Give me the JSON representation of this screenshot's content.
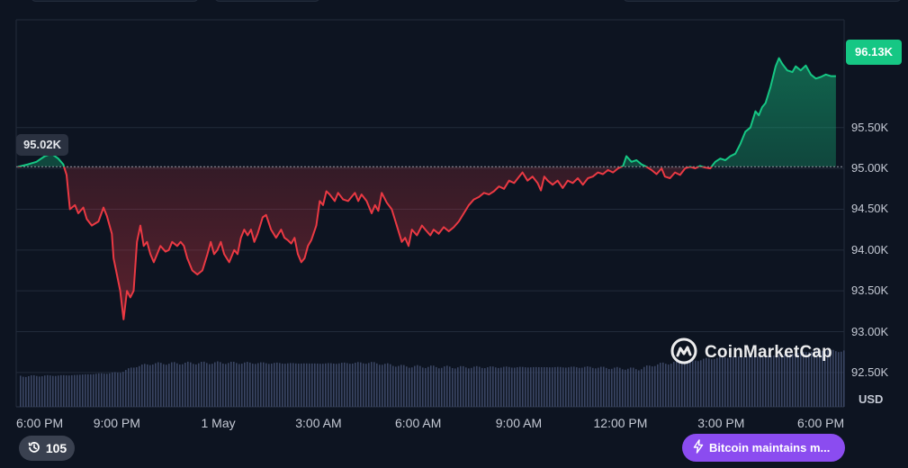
{
  "chart_data": {
    "type": "line",
    "series_name": "",
    "currency": "USD",
    "reference_label": "95.02K",
    "reference_value": 95020,
    "last_price_label": "96.13K",
    "ylim": [
      92080,
      96820
    ],
    "y_ticks": [
      {
        "value": 92500,
        "label": "92.50K"
      },
      {
        "value": 93000,
        "label": "93.00K"
      },
      {
        "value": 93500,
        "label": "93.50K"
      },
      {
        "value": 94000,
        "label": "94.00K"
      },
      {
        "value": 94500,
        "label": "94.50K"
      },
      {
        "value": 95000,
        "label": "95.00K"
      },
      {
        "value": 95500,
        "label": "95.50K"
      }
    ],
    "x_ticks": [
      "6:00 PM",
      "9:00 PM",
      "1 May",
      "3:00 AM",
      "6:00 AM",
      "9:00 AM",
      "12:00 PM",
      "3:00 PM",
      "6:00 PM"
    ],
    "x_hours": [
      0,
      3,
      6,
      9,
      12,
      15,
      18,
      21,
      24
    ],
    "x_range_hours": [
      0,
      24.7
    ],
    "price_points": [
      [
        0.0,
        95020
      ],
      [
        0.3,
        95050
      ],
      [
        0.55,
        95080
      ],
      [
        0.8,
        95150
      ],
      [
        1.0,
        95180
      ],
      [
        1.2,
        95120
      ],
      [
        1.35,
        95050
      ],
      [
        1.45,
        94920
      ],
      [
        1.55,
        94500
      ],
      [
        1.7,
        94550
      ],
      [
        1.8,
        94450
      ],
      [
        1.95,
        94520
      ],
      [
        2.05,
        94380
      ],
      [
        2.2,
        94300
      ],
      [
        2.4,
        94350
      ],
      [
        2.55,
        94520
      ],
      [
        2.65,
        94420
      ],
      [
        2.8,
        94200
      ],
      [
        2.85,
        93900
      ],
      [
        2.95,
        93700
      ],
      [
        3.05,
        93500
      ],
      [
        3.15,
        93150
      ],
      [
        3.25,
        93500
      ],
      [
        3.35,
        93420
      ],
      [
        3.45,
        93500
      ],
      [
        3.55,
        94100
      ],
      [
        3.65,
        94300
      ],
      [
        3.75,
        94050
      ],
      [
        3.85,
        94100
      ],
      [
        3.95,
        93950
      ],
      [
        4.05,
        93850
      ],
      [
        4.15,
        93950
      ],
      [
        4.25,
        94050
      ],
      [
        4.4,
        93980
      ],
      [
        4.5,
        94000
      ],
      [
        4.6,
        94100
      ],
      [
        4.75,
        94050
      ],
      [
        4.85,
        94100
      ],
      [
        4.95,
        94050
      ],
      [
        5.05,
        93900
      ],
      [
        5.2,
        93750
      ],
      [
        5.35,
        93700
      ],
      [
        5.5,
        93750
      ],
      [
        5.65,
        93950
      ],
      [
        5.75,
        94100
      ],
      [
        5.85,
        93950
      ],
      [
        5.95,
        94000
      ],
      [
        6.05,
        94100
      ],
      [
        6.15,
        93950
      ],
      [
        6.3,
        93850
      ],
      [
        6.45,
        94000
      ],
      [
        6.55,
        93950
      ],
      [
        6.65,
        94150
      ],
      [
        6.75,
        94250
      ],
      [
        6.85,
        94180
      ],
      [
        6.95,
        94250
      ],
      [
        7.05,
        94100
      ],
      [
        7.15,
        94200
      ],
      [
        7.3,
        94400
      ],
      [
        7.4,
        94430
      ],
      [
        7.55,
        94250
      ],
      [
        7.7,
        94150
      ],
      [
        7.85,
        94250
      ],
      [
        7.95,
        94150
      ],
      [
        8.05,
        94120
      ],
      [
        8.15,
        94080
      ],
      [
        8.25,
        94150
      ],
      [
        8.35,
        93950
      ],
      [
        8.45,
        93850
      ],
      [
        8.55,
        93900
      ],
      [
        8.65,
        94050
      ],
      [
        8.75,
        94120
      ],
      [
        8.9,
        94300
      ],
      [
        9.0,
        94600
      ],
      [
        9.1,
        94550
      ],
      [
        9.2,
        94720
      ],
      [
        9.3,
        94680
      ],
      [
        9.45,
        94600
      ],
      [
        9.55,
        94700
      ],
      [
        9.7,
        94620
      ],
      [
        9.85,
        94600
      ],
      [
        9.95,
        94650
      ],
      [
        10.05,
        94700
      ],
      [
        10.15,
        94600
      ],
      [
        10.25,
        94680
      ],
      [
        10.4,
        94600
      ],
      [
        10.55,
        94450
      ],
      [
        10.65,
        94550
      ],
      [
        10.75,
        94480
      ],
      [
        10.85,
        94700
      ],
      [
        11.0,
        94580
      ],
      [
        11.15,
        94500
      ],
      [
        11.3,
        94300
      ],
      [
        11.45,
        94100
      ],
      [
        11.55,
        94150
      ],
      [
        11.65,
        94050
      ],
      [
        11.75,
        94250
      ],
      [
        11.9,
        94180
      ],
      [
        12.05,
        94300
      ],
      [
        12.15,
        94250
      ],
      [
        12.3,
        94180
      ],
      [
        12.4,
        94250
      ],
      [
        12.55,
        94200
      ],
      [
        12.7,
        94280
      ],
      [
        12.85,
        94230
      ],
      [
        13.0,
        94280
      ],
      [
        13.15,
        94350
      ],
      [
        13.3,
        94450
      ],
      [
        13.45,
        94550
      ],
      [
        13.6,
        94620
      ],
      [
        13.75,
        94650
      ],
      [
        13.9,
        94700
      ],
      [
        14.05,
        94680
      ],
      [
        14.2,
        94720
      ],
      [
        14.35,
        94780
      ],
      [
        14.5,
        94750
      ],
      [
        14.65,
        94850
      ],
      [
        14.8,
        94820
      ],
      [
        14.95,
        94900
      ],
      [
        15.05,
        94950
      ],
      [
        15.2,
        94850
      ],
      [
        15.35,
        94900
      ],
      [
        15.5,
        94820
      ],
      [
        15.6,
        94730
      ],
      [
        15.7,
        94900
      ],
      [
        15.8,
        94850
      ],
      [
        15.95,
        94800
      ],
      [
        16.1,
        94850
      ],
      [
        16.25,
        94760
      ],
      [
        16.4,
        94850
      ],
      [
        16.55,
        94820
      ],
      [
        16.7,
        94880
      ],
      [
        16.85,
        94800
      ],
      [
        17.0,
        94880
      ],
      [
        17.15,
        94900
      ],
      [
        17.3,
        94950
      ],
      [
        17.45,
        94930
      ],
      [
        17.6,
        94980
      ],
      [
        17.75,
        94950
      ],
      [
        17.9,
        95000
      ],
      [
        18.05,
        95030
      ],
      [
        18.15,
        95150
      ],
      [
        18.3,
        95080
      ],
      [
        18.45,
        95100
      ],
      [
        18.6,
        95050
      ],
      [
        18.75,
        95020
      ],
      [
        18.9,
        94980
      ],
      [
        19.05,
        94930
      ],
      [
        19.2,
        95000
      ],
      [
        19.3,
        94900
      ],
      [
        19.45,
        94880
      ],
      [
        19.6,
        94950
      ],
      [
        19.75,
        94920
      ],
      [
        19.9,
        95000
      ],
      [
        20.05,
        95020
      ],
      [
        20.2,
        95000
      ],
      [
        20.35,
        95030
      ],
      [
        20.5,
        95010
      ],
      [
        20.65,
        95000
      ],
      [
        20.8,
        95080
      ],
      [
        20.95,
        95120
      ],
      [
        21.1,
        95100
      ],
      [
        21.25,
        95150
      ],
      [
        21.4,
        95180
      ],
      [
        21.55,
        95300
      ],
      [
        21.7,
        95450
      ],
      [
        21.85,
        95500
      ],
      [
        22.0,
        95700
      ],
      [
        22.1,
        95650
      ],
      [
        22.2,
        95750
      ],
      [
        22.3,
        95800
      ],
      [
        22.45,
        96000
      ],
      [
        22.6,
        96250
      ],
      [
        22.7,
        96350
      ],
      [
        22.8,
        96280
      ],
      [
        22.95,
        96200
      ],
      [
        23.1,
        96180
      ],
      [
        23.2,
        96250
      ],
      [
        23.35,
        96200
      ],
      [
        23.5,
        96260
      ],
      [
        23.65,
        96150
      ],
      [
        23.8,
        96100
      ],
      [
        23.95,
        96120
      ],
      [
        24.1,
        96150
      ],
      [
        24.25,
        96130
      ],
      [
        24.4,
        96130
      ]
    ],
    "volume_profile": [
      [
        0.0,
        0.34
      ],
      [
        1.5,
        0.35
      ],
      [
        3.0,
        0.38
      ],
      [
        3.5,
        0.45
      ],
      [
        4.0,
        0.48
      ],
      [
        6.0,
        0.49
      ],
      [
        9.0,
        0.48
      ],
      [
        10.5,
        0.49
      ],
      [
        11.5,
        0.45
      ],
      [
        13.0,
        0.44
      ],
      [
        17.0,
        0.44
      ],
      [
        18.5,
        0.42
      ],
      [
        19.0,
        0.47
      ],
      [
        21.0,
        0.55
      ],
      [
        22.5,
        0.57
      ],
      [
        24.0,
        0.63
      ],
      [
        24.4,
        0.62
      ]
    ],
    "colors": {
      "up": "#16c784",
      "down": "#ea3943",
      "grid": "#222b3b",
      "volume": "#3a4563"
    }
  },
  "watermark": {
    "text": "CoinMarketCap",
    "icon": "coinmarketcap-logo-icon"
  },
  "history_badge": {
    "icon": "history-clock-icon",
    "count": "105"
  },
  "news_pill": {
    "icon": "lightning-icon",
    "text": "Bitcoin maintains m..."
  }
}
